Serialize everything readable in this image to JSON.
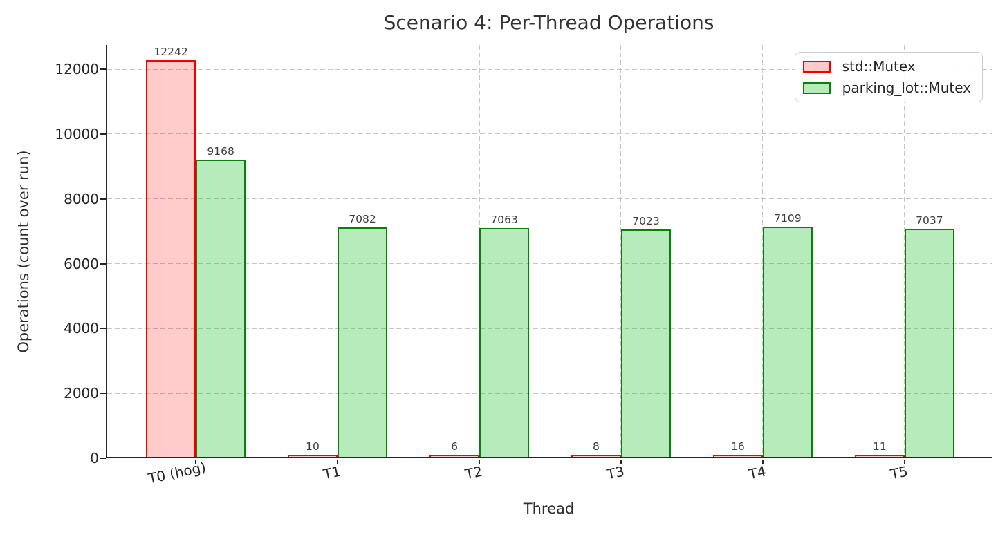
{
  "chart_data": {
    "type": "bar",
    "title": "Scenario 4: Per-Thread Operations",
    "xlabel": "Thread",
    "ylabel": "Operations (count over run)",
    "categories": [
      "T0 (hog)",
      "T1",
      "T2",
      "T3",
      "T4",
      "T5"
    ],
    "series": [
      {
        "name": "std::Mutex",
        "values": [
          12242,
          10,
          6,
          8,
          16,
          11
        ],
        "fill": "rgba(255,20,20,0.22)",
        "edge": "#f20000"
      },
      {
        "name": "parking_lot::Mutex",
        "values": [
          9168,
          7082,
          7063,
          7023,
          7109,
          7037
        ],
        "fill": "rgba(40,200,55,0.34)",
        "edge": "#0a800a"
      }
    ],
    "yticks": [
      0,
      2000,
      4000,
      6000,
      8000,
      10000,
      12000
    ],
    "ylim": [
      0,
      12750
    ],
    "grid": "dashed-both-axes",
    "legend_position": "upper right",
    "bar_value_labels": true
  },
  "style": {
    "grid_color": "#c6c6c6",
    "spine_color": "#262626",
    "tick_label_color": "#262626",
    "title_color": "#333333",
    "bar_label_color": "#3d3d3d"
  }
}
